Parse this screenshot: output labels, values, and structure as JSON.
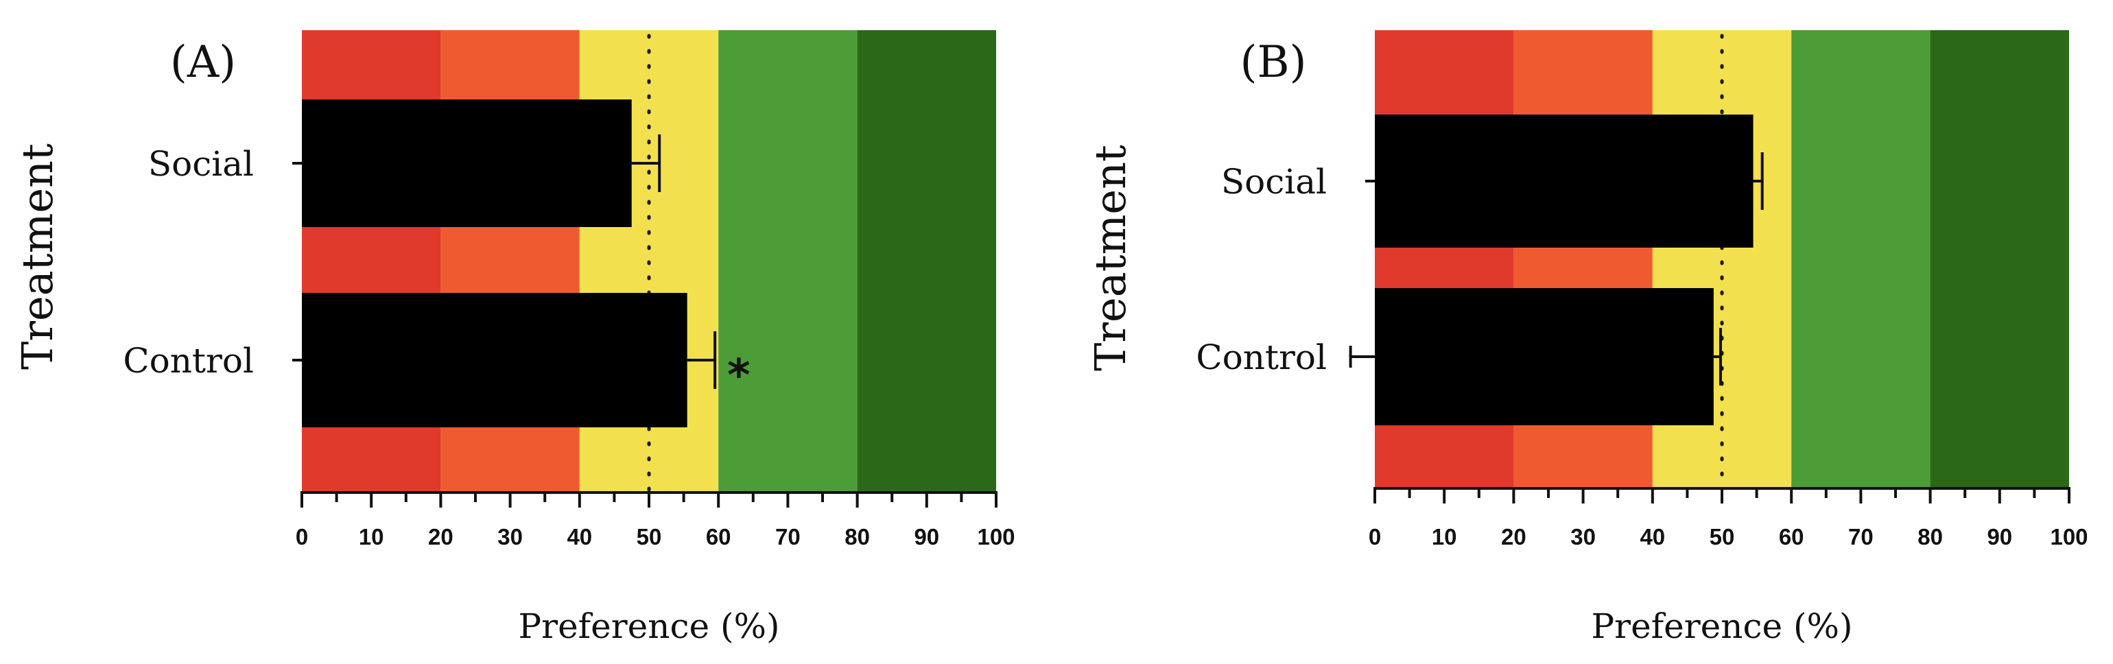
{
  "chart_data": [
    {
      "type": "bar",
      "orientation": "horizontal",
      "panel_label": "(A)",
      "categories": [
        "Social",
        "Control"
      ],
      "values": [
        47.5,
        55.5
      ],
      "error_upper": [
        51.5,
        59.5
      ],
      "error_lower": [
        null,
        null
      ],
      "annotations": [
        "",
        "*"
      ],
      "xlabel": "Preference (%)",
      "ylabel": "Treatment",
      "xlim": [
        0,
        100
      ],
      "xticks": [
        0,
        10,
        20,
        30,
        40,
        50,
        60,
        70,
        80,
        90,
        100
      ],
      "reference_line": 50,
      "color_bands": [
        {
          "from": 0,
          "to": 20,
          "color": "#e03a2c"
        },
        {
          "from": 20,
          "to": 40,
          "color": "#ef5a30"
        },
        {
          "from": 40,
          "to": 60,
          "color": "#f3e04e"
        },
        {
          "from": 60,
          "to": 80,
          "color": "#4c9c38"
        },
        {
          "from": 80,
          "to": 100,
          "color": "#2b6817"
        }
      ],
      "bar_color": "#000000"
    },
    {
      "type": "bar",
      "orientation": "horizontal",
      "panel_label": "(B)",
      "categories": [
        "Social",
        "Control"
      ],
      "values": [
        54.5,
        48.8
      ],
      "error_upper": [
        55.8,
        49.8
      ],
      "error_lower": [
        null,
        -3.5
      ],
      "annotations": [
        "",
        ""
      ],
      "xlabel": "Preference (%)",
      "ylabel": "Treatment",
      "xlim": [
        0,
        100
      ],
      "xticks": [
        0,
        10,
        20,
        30,
        40,
        50,
        60,
        70,
        80,
        90,
        100
      ],
      "reference_line": 50,
      "color_bands": [
        {
          "from": 0,
          "to": 20,
          "color": "#e03a2c"
        },
        {
          "from": 20,
          "to": 40,
          "color": "#ef5a30"
        },
        {
          "from": 40,
          "to": 60,
          "color": "#f3e04e"
        },
        {
          "from": 60,
          "to": 80,
          "color": "#4c9c38"
        },
        {
          "from": 80,
          "to": 100,
          "color": "#2b6817"
        }
      ],
      "bar_color": "#000000"
    }
  ]
}
